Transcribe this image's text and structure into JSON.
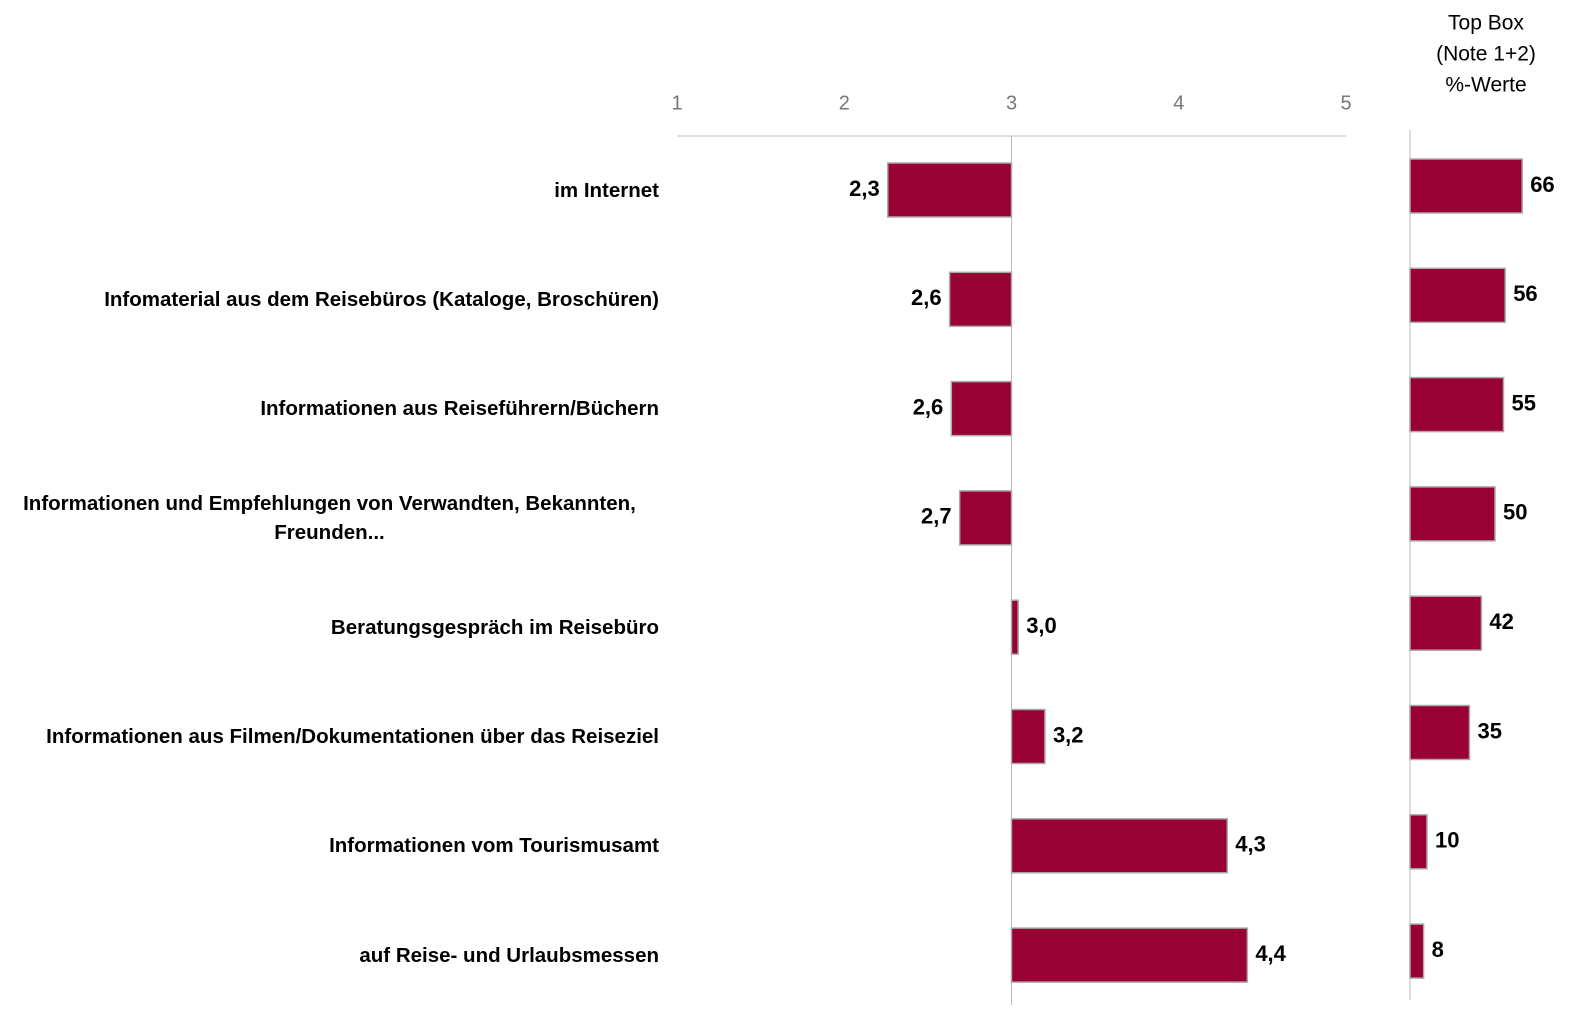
{
  "chart_data": [
    {
      "type": "bar",
      "categories": [
        "im Internet",
        "Infomaterial aus dem Reisebüros (Kataloge, Broschüren)",
        "Informationen aus Reiseführern/Büchern",
        "Informationen und Empfehlungen von Verwandten, Bekannten, Freunden...",
        "Beratungsgespräch im Reisebüro",
        "Informationen aus Filmen/Dokumentationen über das Reiseziel",
        "Informationen vom Tourismusamt",
        "auf Reise- und Urlaubsmessen"
      ],
      "values": [
        2.26,
        2.63,
        2.64,
        2.69,
        3.04,
        3.2,
        4.29,
        4.41
      ],
      "value_labels": [
        "2,3",
        "2,6",
        "2,6",
        "2,7",
        "3,0",
        "3,2",
        "4,3",
        "4,4"
      ],
      "xlim": [
        1,
        5
      ],
      "xticks": [
        1,
        2,
        3,
        4,
        5
      ],
      "base": 3,
      "color": "#990033"
    },
    {
      "type": "bar",
      "title": [
        "Top Box",
        "(Note 1+2)",
        "%-Werte"
      ],
      "values": [
        66,
        56,
        55,
        50,
        42,
        35,
        10,
        8
      ],
      "xlim": [
        0,
        100
      ],
      "color": "#990033"
    }
  ]
}
